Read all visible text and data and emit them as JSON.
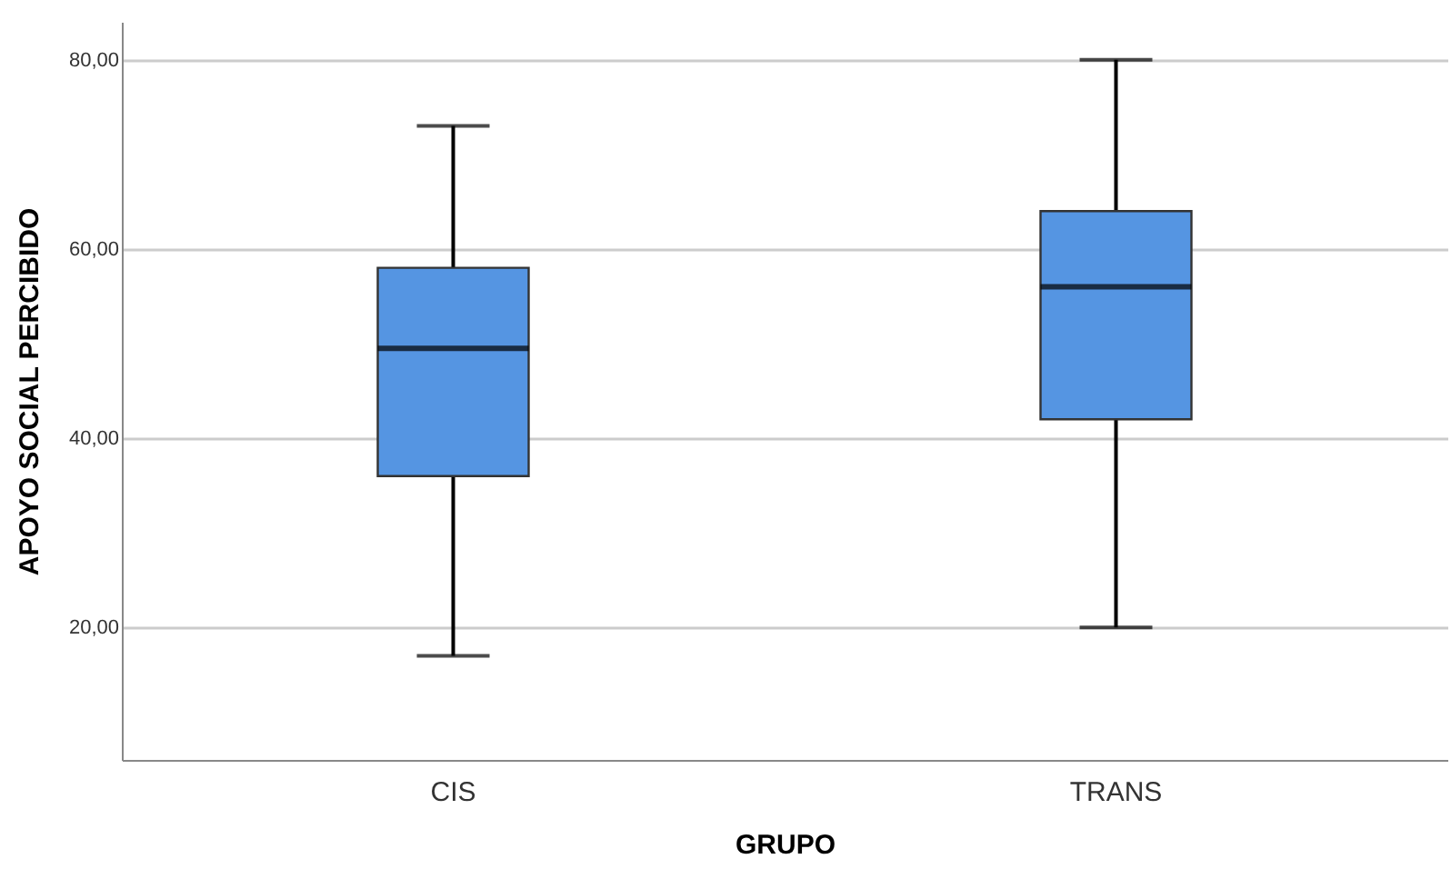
{
  "chart_data": {
    "type": "box",
    "xlabel": "GRUPO",
    "ylabel": "APOYO SOCIAL PERCIBIDO",
    "categories": [
      "CIS",
      "TRANS"
    ],
    "boxes": [
      {
        "low": 17,
        "q1": 36,
        "median": 49.5,
        "q3": 58,
        "high": 73
      },
      {
        "low": 20,
        "q1": 42,
        "median": 56,
        "q3": 64,
        "high": 80
      }
    ],
    "color": "#5595e2",
    "ylim": [
      6,
      84
    ],
    "yticks": [
      {
        "value": 20,
        "label": "20,00"
      },
      {
        "value": 40,
        "label": "40,00"
      },
      {
        "value": 60,
        "label": "60,00"
      },
      {
        "value": 80,
        "label": "80,00"
      }
    ],
    "grid": "y"
  }
}
